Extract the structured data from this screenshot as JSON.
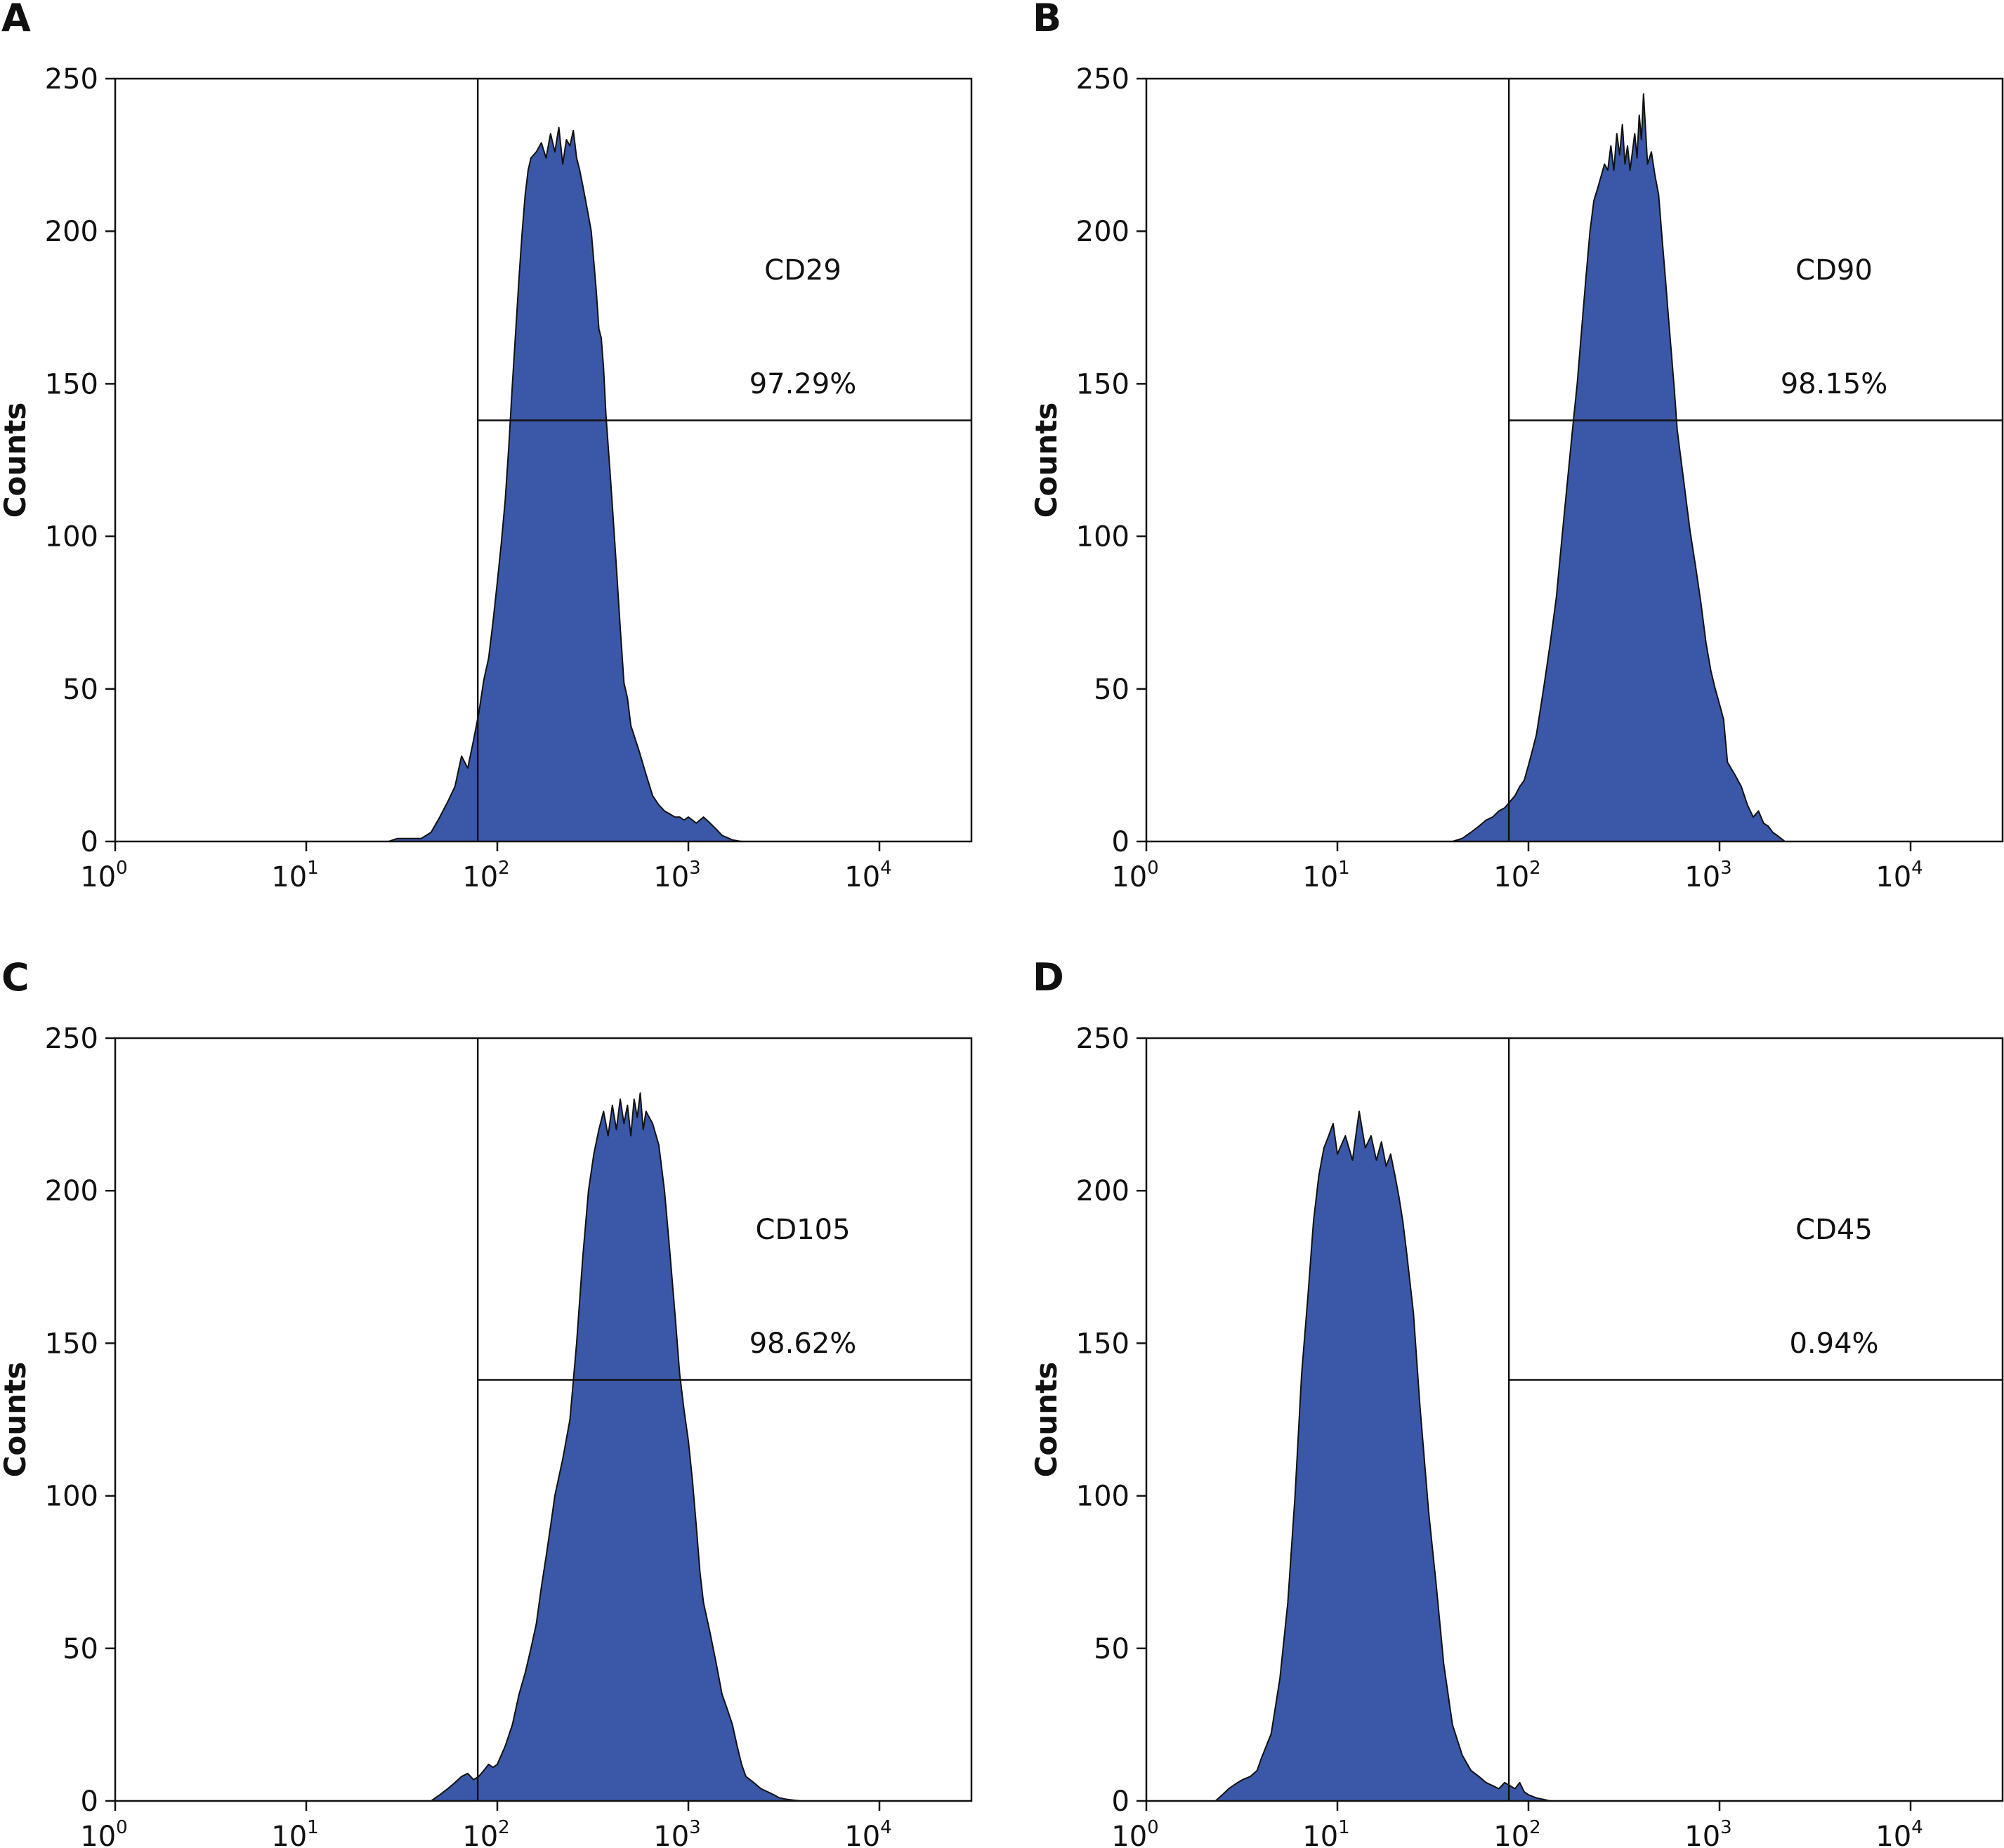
{
  "chart_data": [
    {
      "panel": "A",
      "type": "area",
      "xscale": "log",
      "xlim": [
        1,
        30000
      ],
      "ylim": [
        0,
        250
      ],
      "xticks": [
        1,
        10,
        100,
        1000,
        10000
      ],
      "xtick_labels": [
        {
          "base": "10",
          "exp": "0"
        },
        {
          "base": "10",
          "exp": "1"
        },
        {
          "base": "10",
          "exp": "2"
        },
        {
          "base": "10",
          "exp": "3"
        },
        {
          "base": "10",
          "exp": "4"
        }
      ],
      "yticks": [
        0,
        50,
        100,
        150,
        200,
        250
      ],
      "ylabel": "Counts",
      "marker": "CD29",
      "percent": "97.29%",
      "gate": {
        "x": 79,
        "y": 138
      },
      "fill_color": "#3b58a8",
      "x": [
        27,
        30,
        35,
        40,
        45,
        50,
        55,
        60,
        65,
        70,
        75,
        80,
        85,
        90,
        95,
        100,
        105,
        110,
        115,
        120,
        125,
        130,
        135,
        140,
        145,
        150,
        160,
        170,
        180,
        190,
        200,
        210,
        220,
        230,
        240,
        250,
        260,
        270,
        280,
        290,
        300,
        310,
        320,
        330,
        340,
        350,
        360,
        370,
        380,
        390,
        400,
        420,
        440,
        460,
        480,
        500,
        550,
        600,
        650,
        700,
        750,
        800,
        850,
        900,
        950,
        1000,
        1100,
        1200,
        1300,
        1400,
        1500,
        1700,
        1900
      ],
      "y": [
        0,
        1,
        1,
        1,
        3,
        8,
        13,
        18,
        28,
        24,
        33,
        42,
        53,
        60,
        72,
        85,
        98,
        112,
        130,
        150,
        168,
        185,
        200,
        212,
        220,
        224,
        226,
        229,
        224,
        232,
        226,
        234,
        222,
        230,
        228,
        233,
        224,
        220,
        215,
        210,
        205,
        200,
        190,
        180,
        168,
        165,
        155,
        140,
        130,
        120,
        110,
        90,
        70,
        52,
        47,
        38,
        30,
        22,
        15,
        12,
        10,
        9,
        8,
        8,
        7,
        8,
        6,
        8,
        6,
        4,
        2,
        0.5,
        0
      ]
    },
    {
      "panel": "B",
      "type": "area",
      "xscale": "log",
      "xlim": [
        1,
        30000
      ],
      "ylim": [
        0,
        250
      ],
      "xticks": [
        1,
        10,
        100,
        1000,
        10000
      ],
      "xtick_labels": [
        {
          "base": "10",
          "exp": "0"
        },
        {
          "base": "10",
          "exp": "1"
        },
        {
          "base": "10",
          "exp": "2"
        },
        {
          "base": "10",
          "exp": "3"
        },
        {
          "base": "10",
          "exp": "4"
        }
      ],
      "yticks": [
        0,
        50,
        100,
        150,
        200,
        250
      ],
      "ylabel": "Counts",
      "marker": "CD90",
      "percent": "98.15%",
      "gate": {
        "x": 79,
        "y": 138
      },
      "fill_color": "#3b58a8",
      "x": [
        40,
        45,
        50,
        55,
        60,
        65,
        70,
        75,
        80,
        85,
        90,
        95,
        100,
        105,
        110,
        120,
        130,
        140,
        150,
        160,
        170,
        180,
        190,
        200,
        210,
        220,
        230,
        240,
        250,
        260,
        270,
        280,
        290,
        300,
        310,
        320,
        330,
        340,
        350,
        360,
        370,
        380,
        390,
        400,
        420,
        440,
        460,
        480,
        500,
        520,
        540,
        560,
        580,
        600,
        650,
        700,
        750,
        800,
        850,
        900,
        950,
        1000,
        1050,
        1100,
        1200,
        1300,
        1400,
        1500,
        1600,
        1700,
        1800,
        1900,
        2000,
        2100,
        2200
      ],
      "y": [
        0,
        1,
        3,
        5,
        7,
        8,
        10,
        11,
        13,
        15,
        18,
        20,
        25,
        30,
        35,
        50,
        65,
        80,
        100,
        118,
        135,
        150,
        168,
        185,
        200,
        210,
        214,
        218,
        222,
        220,
        228,
        220,
        232,
        225,
        235,
        222,
        228,
        220,
        226,
        232,
        224,
        238,
        230,
        245,
        222,
        226,
        218,
        212,
        198,
        185,
        172,
        160,
        148,
        135,
        118,
        102,
        90,
        78,
        65,
        56,
        50,
        45,
        40,
        26,
        22,
        18,
        12,
        8,
        10,
        6,
        5,
        3,
        2,
        1,
        0
      ]
    },
    {
      "panel": "C",
      "type": "area",
      "xscale": "log",
      "xlim": [
        1,
        30000
      ],
      "ylim": [
        0,
        250
      ],
      "xticks": [
        1,
        10,
        100,
        1000,
        10000
      ],
      "xtick_labels": [
        {
          "base": "10",
          "exp": "0"
        },
        {
          "base": "10",
          "exp": "1"
        },
        {
          "base": "10",
          "exp": "2"
        },
        {
          "base": "10",
          "exp": "3"
        },
        {
          "base": "10",
          "exp": "4"
        }
      ],
      "yticks": [
        0,
        50,
        100,
        150,
        200,
        250
      ],
      "ylabel": "Counts",
      "marker": "CD105",
      "percent": "98.62%",
      "gate": {
        "x": 79,
        "y": 138
      },
      "fill_color": "#3b58a8",
      "x": [
        45,
        50,
        55,
        60,
        65,
        70,
        75,
        80,
        85,
        90,
        95,
        100,
        110,
        120,
        130,
        140,
        150,
        160,
        170,
        180,
        190,
        200,
        220,
        240,
        260,
        280,
        300,
        320,
        340,
        360,
        380,
        400,
        420,
        440,
        460,
        480,
        500,
        520,
        540,
        560,
        580,
        600,
        650,
        700,
        750,
        800,
        850,
        900,
        950,
        1000,
        1050,
        1100,
        1150,
        1200,
        1300,
        1400,
        1500,
        1600,
        1700,
        1800,
        1900,
        2000,
        2200,
        2400,
        2600,
        2800,
        3000,
        3300,
        3600,
        3900
      ],
      "y": [
        0,
        2,
        4,
        6,
        8,
        9,
        7,
        8,
        10,
        12,
        11,
        12,
        18,
        25,
        35,
        42,
        50,
        58,
        70,
        80,
        90,
        100,
        112,
        125,
        150,
        178,
        200,
        212,
        220,
        226,
        218,
        228,
        220,
        230,
        222,
        228,
        218,
        230,
        224,
        232,
        220,
        226,
        222,
        215,
        200,
        180,
        160,
        140,
        128,
        118,
        105,
        90,
        75,
        65,
        55,
        45,
        35,
        30,
        25,
        18,
        12,
        8,
        6,
        4,
        3,
        2,
        1,
        0.5,
        0.2,
        0
      ]
    },
    {
      "panel": "D",
      "type": "area",
      "xscale": "log",
      "xlim": [
        1,
        30000
      ],
      "ylim": [
        0,
        250
      ],
      "xticks": [
        1,
        10,
        100,
        1000,
        10000
      ],
      "xtick_labels": [
        {
          "base": "10",
          "exp": "0"
        },
        {
          "base": "10",
          "exp": "1"
        },
        {
          "base": "10",
          "exp": "2"
        },
        {
          "base": "10",
          "exp": "3"
        },
        {
          "base": "10",
          "exp": "4"
        }
      ],
      "yticks": [
        0,
        50,
        100,
        150,
        200,
        250
      ],
      "ylabel": "Counts",
      "marker": "CD45",
      "percent": "0.94%",
      "gate": {
        "x": 79,
        "y": 138
      },
      "fill_color": "#3b58a8",
      "x": [
        2.3,
        2.5,
        2.7,
        3.0,
        3.2,
        3.5,
        3.8,
        4.0,
        4.5,
        5.0,
        5.5,
        6.0,
        6.5,
        7.0,
        7.5,
        8.0,
        8.5,
        9.0,
        9.5,
        10,
        11,
        12,
        13,
        14,
        15,
        16,
        17,
        18,
        19,
        20,
        21,
        22,
        23,
        25,
        27,
        30,
        33,
        36,
        40,
        45,
        50,
        55,
        60,
        65,
        70,
        75,
        80,
        85,
        90,
        95,
        100,
        110,
        120,
        130
      ],
      "y": [
        0,
        2,
        4,
        6,
        7,
        8,
        10,
        14,
        22,
        40,
        65,
        100,
        140,
        165,
        190,
        205,
        214,
        218,
        222,
        212,
        218,
        210,
        226,
        214,
        218,
        210,
        216,
        208,
        212,
        205,
        198,
        190,
        180,
        160,
        130,
        95,
        70,
        45,
        25,
        15,
        10,
        8,
        6,
        5,
        4,
        6,
        5,
        4,
        6,
        3,
        2,
        1,
        0.5,
        0
      ]
    }
  ]
}
